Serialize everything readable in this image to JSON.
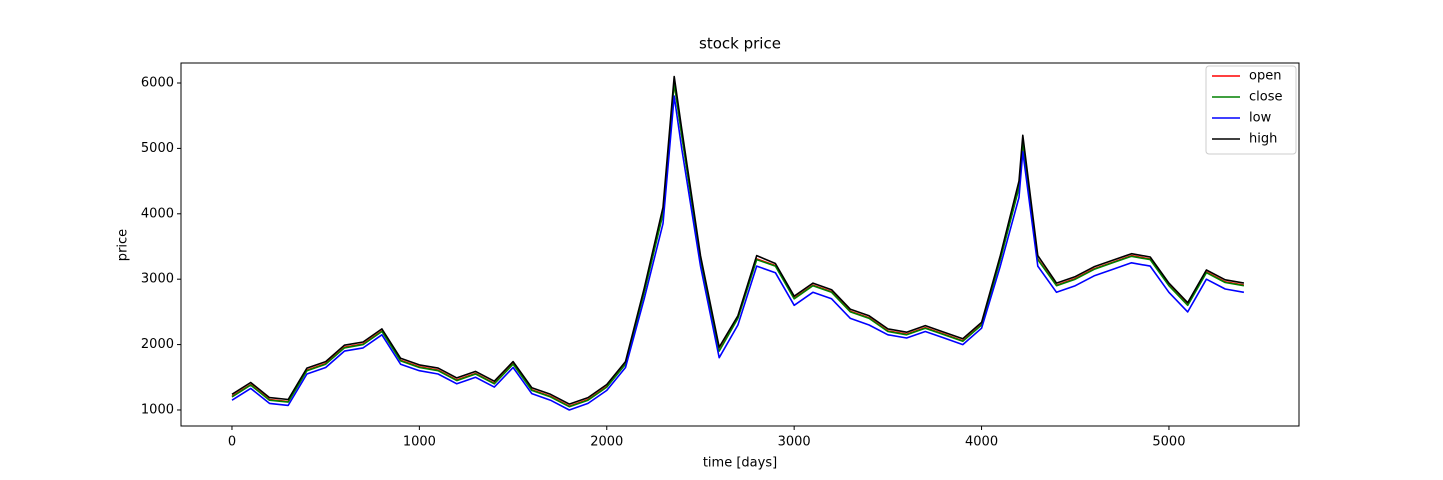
{
  "chart_data": {
    "type": "line",
    "title": "stock price",
    "xlabel": "time [days]",
    "ylabel": "price",
    "x": [
      0,
      100,
      200,
      300,
      400,
      500,
      600,
      700,
      800,
      900,
      1000,
      1100,
      1200,
      1300,
      1400,
      1500,
      1600,
      1700,
      1800,
      1900,
      2000,
      2100,
      2200,
      2300,
      2360,
      2400,
      2500,
      2600,
      2700,
      2800,
      2900,
      3000,
      3100,
      3200,
      3300,
      3400,
      3500,
      3600,
      3700,
      3800,
      3900,
      4000,
      4100,
      4200,
      4220,
      4300,
      4400,
      4500,
      4600,
      4700,
      4800,
      4900,
      5000,
      5100,
      5200,
      5300,
      5400
    ],
    "series": [
      {
        "name": "open",
        "color": "#ff0000",
        "values": [
          1210,
          1390,
          1160,
          1130,
          1610,
          1710,
          1960,
          2010,
          2210,
          1760,
          1660,
          1610,
          1460,
          1560,
          1410,
          1710,
          1310,
          1210,
          1060,
          1160,
          1360,
          1710,
          2810,
          4010,
          6010,
          5210,
          3310,
          1910,
          2410,
          3310,
          3210,
          2710,
          2910,
          2810,
          2510,
          2410,
          2210,
          2160,
          2260,
          2160,
          2060,
          2310,
          3310,
          4410,
          5110,
          3310,
          2910,
          3010,
          3160,
          3260,
          3360,
          3310,
          2910,
          2610,
          3110,
          2960,
          2910
        ]
      },
      {
        "name": "close",
        "color": "#008000",
        "values": [
          1200,
          1380,
          1150,
          1120,
          1600,
          1700,
          1950,
          2000,
          2200,
          1750,
          1650,
          1600,
          1450,
          1550,
          1400,
          1700,
          1300,
          1200,
          1050,
          1150,
          1350,
          1700,
          2800,
          4000,
          6000,
          5200,
          3300,
          1900,
          2400,
          3300,
          3200,
          2700,
          2900,
          2800,
          2500,
          2400,
          2200,
          2150,
          2250,
          2150,
          2050,
          2300,
          3300,
          4400,
          5100,
          3300,
          2900,
          3000,
          3150,
          3250,
          3350,
          3300,
          2900,
          2600,
          3100,
          2950,
          2900
        ]
      },
      {
        "name": "low",
        "color": "#0000ff",
        "values": [
          1150,
          1330,
          1100,
          1070,
          1550,
          1650,
          1900,
          1950,
          2150,
          1700,
          1600,
          1550,
          1400,
          1500,
          1350,
          1650,
          1250,
          1150,
          1000,
          1100,
          1300,
          1650,
          2700,
          3850,
          5800,
          5000,
          3200,
          1800,
          2300,
          3200,
          3100,
          2600,
          2800,
          2700,
          2400,
          2300,
          2150,
          2100,
          2200,
          2100,
          2000,
          2250,
          3200,
          4250,
          4950,
          3200,
          2800,
          2900,
          3050,
          3150,
          3250,
          3200,
          2800,
          2500,
          3000,
          2850,
          2800
        ]
      },
      {
        "name": "high",
        "color": "#000000",
        "values": [
          1240,
          1420,
          1190,
          1160,
          1640,
          1740,
          1990,
          2040,
          2240,
          1790,
          1690,
          1640,
          1490,
          1590,
          1440,
          1740,
          1340,
          1240,
          1090,
          1190,
          1390,
          1740,
          2860,
          4100,
          6100,
          5300,
          3360,
          1960,
          2440,
          3360,
          3240,
          2740,
          2940,
          2840,
          2540,
          2440,
          2240,
          2190,
          2290,
          2190,
          2090,
          2340,
          3360,
          4500,
          5200,
          3360,
          2940,
          3040,
          3190,
          3290,
          3390,
          3340,
          2940,
          2640,
          3140,
          2990,
          2940
        ]
      }
    ],
    "xlim": [
      -272,
      5694
    ],
    "xticks": [
      0,
      1000,
      2000,
      3000,
      4000,
      5000
    ],
    "ylim": [
      755,
      6306
    ],
    "yticks": [
      1000,
      2000,
      3000,
      4000,
      5000,
      6000
    ],
    "grid": false,
    "legend": "upper right"
  }
}
